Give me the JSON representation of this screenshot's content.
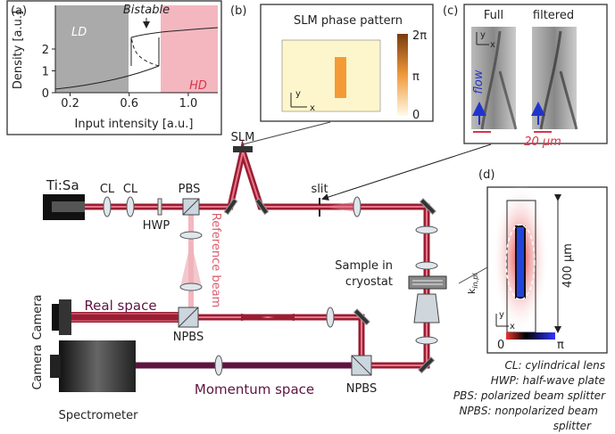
{
  "panel_a": {
    "label": "(a)",
    "title": "Bistable",
    "ld": "LD",
    "hd": "HD",
    "ylabel": "Density [a.u.]",
    "xlabel": "Input intensity [a.u.]",
    "xlim": [
      0.1,
      1.2
    ],
    "ylim": [
      0,
      4
    ],
    "xticks": [
      0.2,
      0.6,
      {
        "value": 1,
        "label": "1.0"
      }
    ],
    "yticks": [
      0,
      1,
      2
    ]
  },
  "panel_b": {
    "label": "(b)",
    "title": "SLM phase pattern",
    "colorbar": [
      "2π",
      "π",
      "0"
    ],
    "axis_y": "y",
    "axis_x": "x"
  },
  "panel_c": {
    "label": "(c)",
    "left": "Full",
    "right": "filtered",
    "flow": "flow",
    "scale": "20 μm",
    "axis_y": "y",
    "axis_x": "x"
  },
  "panel_d": {
    "label": "(d)",
    "size": "400 μm",
    "k": "k",
    "k_sub": "in,pl",
    "colorbar": [
      "0",
      "π"
    ],
    "axis_y": "y",
    "axis_x": "x"
  },
  "setup": {
    "laser": "Ti:Sa",
    "cl1": "CL",
    "cl2": "CL",
    "hwp": "HWP",
    "pbs": "PBS",
    "slm": "SLM",
    "slit": "slit",
    "reference": "Reference beam",
    "sample": [
      "Sample in",
      "cryostat"
    ],
    "real": "Real space",
    "camera1": "Camera",
    "camera2": "Camera",
    "npbs1": "NPBS",
    "npbs2": "NPBS",
    "momentum": "Momentum space",
    "spectrometer": "Spectrometer"
  },
  "legend": [
    "CL: cylindrical lens",
    "HWP: half-wave plate",
    "PBS: polarized beam splitter",
    "NPBS: nonpolarized beam",
    "splitter"
  ]
}
